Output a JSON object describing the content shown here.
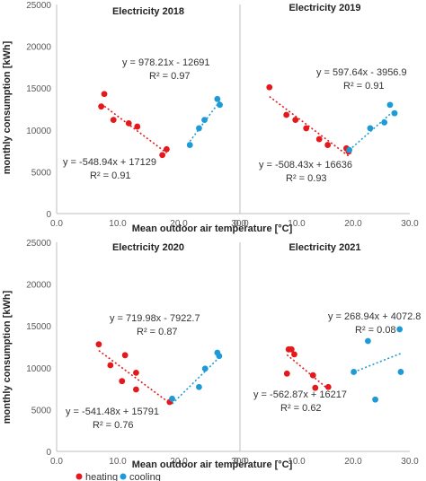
{
  "colors": {
    "heating": "#e3191c",
    "cooling": "#1e9bd7",
    "axis": "#bfbfbf",
    "text": "#222222"
  },
  "shared": {
    "xlabel": "Mean outdoor air temperature [°C]",
    "ylabel": "monthly consumption [kWh]",
    "legend": [
      "heating",
      "cooling"
    ]
  },
  "chart_data": [
    {
      "type": "scatter",
      "title": "Electricity 2018",
      "xlabel": "Mean outdoor air temperature [°C]",
      "ylabel": "monthly consumption [kWh]",
      "xlim": [
        0,
        30
      ],
      "ylim": [
        0,
        25000
      ],
      "xticks": [
        "0.0",
        "10.0",
        "20.0",
        "30.0"
      ],
      "yticks": [
        "0",
        "5000",
        "10000",
        "15000",
        "20000",
        "25000"
      ],
      "series": [
        {
          "name": "heating",
          "points": [
            [
              7.3,
              12800
            ],
            [
              7.8,
              14300
            ],
            [
              9.3,
              11200
            ],
            [
              11.8,
              10800
            ],
            [
              13.2,
              10400
            ],
            [
              17.3,
              7000
            ],
            [
              18.0,
              7700
            ]
          ]
        },
        {
          "name": "cooling",
          "points": [
            [
              21.8,
              8200
            ],
            [
              23.3,
              10200
            ],
            [
              24.2,
              11200
            ],
            [
              26.3,
              13700
            ],
            [
              26.7,
              13000
            ]
          ]
        }
      ],
      "trendlines": [
        {
          "series": "heating",
          "slope": -548.94,
          "intercept": 17129,
          "x_range": [
            7.3,
            18.0
          ],
          "equation": "y = -548.94x + 17129",
          "r2": "R² = 0.91"
        },
        {
          "series": "cooling",
          "slope": 978.21,
          "intercept": -12691,
          "x_range": [
            21.8,
            26.7
          ],
          "equation": "y = 978.21x - 12691",
          "r2": "R² = 0.97"
        }
      ],
      "grid": false
    },
    {
      "type": "scatter",
      "title": "Electricity 2019",
      "xlabel": "",
      "ylabel": "",
      "xlim": [
        0,
        30
      ],
      "ylim": [
        0,
        25000
      ],
      "xticks": [
        "0.0",
        "10.0",
        "20.0",
        "30.0"
      ],
      "yticks": [],
      "series": [
        {
          "name": "heating",
          "points": [
            [
              5.2,
              15100
            ],
            [
              8.2,
              11800
            ],
            [
              9.8,
              11200
            ],
            [
              11.7,
              10200
            ],
            [
              14.0,
              8900
            ],
            [
              15.5,
              8200
            ],
            [
              18.8,
              7800
            ],
            [
              19.2,
              7400
            ]
          ]
        },
        {
          "name": "cooling",
          "points": [
            [
              19.3,
              7600
            ],
            [
              23.0,
              10200
            ],
            [
              25.5,
              10900
            ],
            [
              26.5,
              13000
            ],
            [
              27.3,
              12000
            ]
          ]
        }
      ],
      "trendlines": [
        {
          "series": "heating",
          "slope": -508.43,
          "intercept": 16636,
          "x_range": [
            5.2,
            19.2
          ],
          "equation": "y = -508.43x + 16636",
          "r2": "R² = 0.93"
        },
        {
          "series": "cooling",
          "slope": 597.64,
          "intercept": -3956.9,
          "x_range": [
            19.3,
            27.3
          ],
          "equation": "y = 597.64x - 3956.9",
          "r2": "R² = 0.91"
        }
      ],
      "grid": false
    },
    {
      "type": "scatter",
      "title": "Electricity 2020",
      "xlabel": "Mean outdoor air temperature [°C]",
      "ylabel": "monthly consumption [kWh]",
      "xlim": [
        0,
        30
      ],
      "ylim": [
        0,
        25000
      ],
      "xticks": [
        "0.0",
        "10.0",
        "20.0",
        "30.0"
      ],
      "yticks": [
        "0",
        "5000",
        "10000",
        "15000",
        "20000",
        "25000"
      ],
      "series": [
        {
          "name": "heating",
          "points": [
            [
              6.9,
              12800
            ],
            [
              8.8,
              10300
            ],
            [
              10.7,
              8400
            ],
            [
              11.2,
              11500
            ],
            [
              13.0,
              9400
            ],
            [
              13.0,
              7400
            ],
            [
              18.5,
              5900
            ]
          ]
        },
        {
          "name": "cooling",
          "points": [
            [
              18.9,
              6300
            ],
            [
              23.3,
              7700
            ],
            [
              24.3,
              9900
            ],
            [
              26.3,
              11800
            ],
            [
              26.6,
              11400
            ]
          ]
        }
      ],
      "trendlines": [
        {
          "series": "heating",
          "slope": -541.48,
          "intercept": 15791,
          "x_range": [
            6.9,
            18.5
          ],
          "equation": "y = -541.48x + 15791",
          "r2": "R² = 0.76"
        },
        {
          "series": "cooling",
          "slope": 719.98,
          "intercept": -7922.7,
          "x_range": [
            18.9,
            26.6
          ],
          "equation": "y = 719.98x - 7922.7",
          "r2": "R² = 0.87"
        }
      ],
      "grid": false
    },
    {
      "type": "scatter",
      "title": "Electricity 2021",
      "xlabel": "",
      "ylabel": "",
      "xlim": [
        0,
        30
      ],
      "ylim": [
        0,
        25000
      ],
      "xticks": [
        "0.0",
        "10.0",
        "20.0",
        "30.0"
      ],
      "yticks": [],
      "series": [
        {
          "name": "heating",
          "points": [
            [
              8.3,
              9300
            ],
            [
              8.6,
              12200
            ],
            [
              9.1,
              12200
            ],
            [
              9.6,
              11600
            ],
            [
              12.9,
              9100
            ],
            [
              13.3,
              7600
            ],
            [
              15.6,
              7700
            ]
          ]
        },
        {
          "name": "cooling",
          "points": [
            [
              20.1,
              9500
            ],
            [
              22.6,
              13200
            ],
            [
              23.9,
              6200
            ],
            [
              28.2,
              14600
            ],
            [
              28.4,
              9500
            ]
          ]
        }
      ],
      "trendlines": [
        {
          "series": "heating",
          "slope": -562.87,
          "intercept": 16217,
          "x_range": [
            8.3,
            15.6
          ],
          "equation": "y = -562.87x + 16217",
          "r2": "R² = 0.62"
        },
        {
          "series": "cooling",
          "slope": 268.94,
          "intercept": 4072.8,
          "x_range": [
            20.1,
            28.4
          ],
          "equation": "y = 268.94x + 4072.8",
          "r2": "R² = 0.08"
        }
      ],
      "grid": false
    }
  ]
}
